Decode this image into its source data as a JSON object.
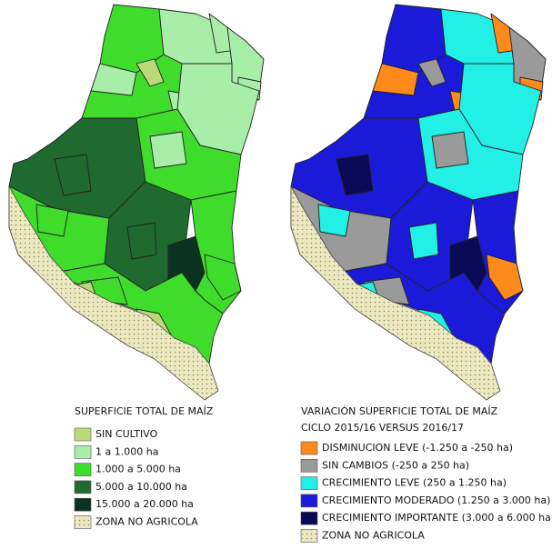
{
  "maps": [
    {
      "title": "SUPERFICIE TOTAL DE MAÍZ",
      "legend": [
        {
          "label": "SIN CULTIVO",
          "color": "#bcd97a"
        },
        {
          "label": "1 a 1.000 ha",
          "color": "#a8eda8"
        },
        {
          "label": "1.000 a 5.000 ha",
          "color": "#3fdc2b"
        },
        {
          "label": "5.000 a 10.000 ha",
          "color": "#1f6a2f"
        },
        {
          "label": "15.000 a 20.000 ha",
          "color": "#0c3321"
        },
        {
          "label": "ZONA NO AGRICOLA",
          "color": "#ece8c0"
        }
      ]
    },
    {
      "title": "VARIACIÓN SUPERFICIE TOTAL DE MAÍZ",
      "subtitle": "CICLO 2015/16 VERSUS 2016/17",
      "legend": [
        {
          "label": "DISMINUCION LEVE (-1.250 a -250 ha)",
          "color": "#ff8a1c"
        },
        {
          "label": "SIN CAMBIOS (-250 a 250 ha)",
          "color": "#9a9a9a"
        },
        {
          "label": "CRECIMIENTO LEVE (250 a 1.250 ha)",
          "color": "#22efe6"
        },
        {
          "label": "CRECIMIENTO MODERADO (1.250 a 3.000 ha)",
          "color": "#1a1ad8"
        },
        {
          "label": "CRECIMIENTO IMPORTANTE (3.000 a 6.000 ha)",
          "color": "#0a0a58"
        },
        {
          "label": "ZONA NO AGRICOLA",
          "color": "#ece8c0"
        }
      ]
    }
  ]
}
